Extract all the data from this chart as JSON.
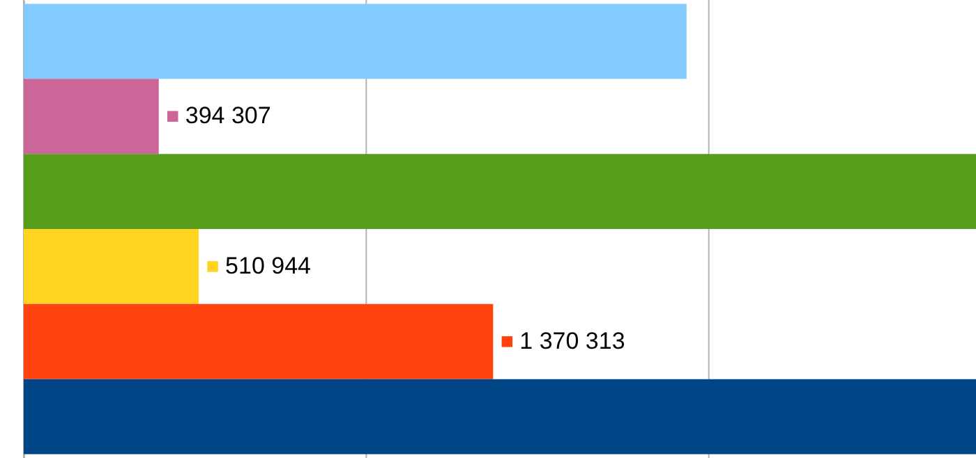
{
  "chart_data": {
    "type": "bar",
    "orientation": "horizontal",
    "categories": [
      null,
      null,
      null,
      null,
      null,
      null
    ],
    "values": [
      1935000,
      394307,
      2780000,
      510944,
      1370313,
      2780000
    ],
    "colors": [
      "#83caff",
      "#cc6699",
      "#579d1c",
      "#ffd320",
      "#ff420e",
      "#004586"
    ],
    "value_labels": [
      null,
      "394 307",
      null,
      "510 944",
      "1 370 313",
      null
    ],
    "xlim": [
      0,
      2780000
    ],
    "xticks": [
      {
        "value": 0,
        "label": null
      },
      {
        "value": 1000000,
        "label": null
      },
      {
        "value": 2000000,
        "label": null
      }
    ],
    "grid": "x"
  }
}
